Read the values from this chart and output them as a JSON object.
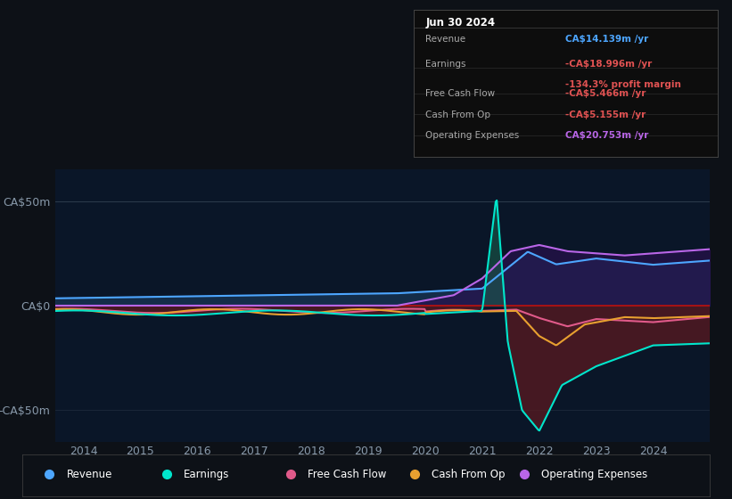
{
  "bg_color": "#0d1117",
  "plot_bg_color": "#0a1628",
  "title": "Jun 30 2024",
  "ylim": [
    -65,
    65
  ],
  "xlim": [
    2013.5,
    2025.0
  ],
  "yticks": [
    -50,
    0,
    50
  ],
  "ytick_labels": [
    "-CA$50m",
    "CA$0",
    "CA$50m"
  ],
  "xtick_years": [
    2014,
    2015,
    2016,
    2017,
    2018,
    2019,
    2020,
    2021,
    2022,
    2023,
    2024
  ],
  "zero_line_color": "#bb1111",
  "series": {
    "revenue": {
      "color": "#4da6ff",
      "label": "Revenue"
    },
    "earnings": {
      "color": "#00e5cc",
      "label": "Earnings"
    },
    "free_cash_flow": {
      "color": "#e05a8a",
      "label": "Free Cash Flow"
    },
    "cash_from_op": {
      "color": "#e8a030",
      "label": "Cash From Op"
    },
    "operating_expenses": {
      "color": "#b966e7",
      "label": "Operating Expenses"
    }
  },
  "legend": [
    {
      "label": "Revenue",
      "color": "#4da6ff"
    },
    {
      "label": "Earnings",
      "color": "#00e5cc"
    },
    {
      "label": "Free Cash Flow",
      "color": "#e05a8a"
    },
    {
      "label": "Cash From Op",
      "color": "#e8a030"
    },
    {
      "label": "Operating Expenses",
      "color": "#b966e7"
    }
  ],
  "infobox": {
    "title": "Jun 30 2024",
    "rows": [
      {
        "label": "Revenue",
        "value": "CA$14.139m /yr",
        "vcolor": "#4da6ff",
        "extra": null,
        "ecolor": null
      },
      {
        "label": "Earnings",
        "value": "-CA$18.996m /yr",
        "vcolor": "#e05252",
        "extra": "-134.3% profit margin",
        "ecolor": "#e05252"
      },
      {
        "label": "Free Cash Flow",
        "value": "-CA$5.466m /yr",
        "vcolor": "#e05252",
        "extra": null,
        "ecolor": null
      },
      {
        "label": "Cash From Op",
        "value": "-CA$5.155m /yr",
        "vcolor": "#e05252",
        "extra": null,
        "ecolor": null
      },
      {
        "label": "Operating Expenses",
        "value": "CA$20.753m /yr",
        "vcolor": "#b966e7",
        "extra": null,
        "ecolor": null
      }
    ]
  }
}
